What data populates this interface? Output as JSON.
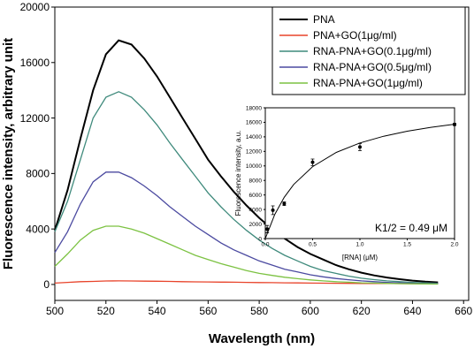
{
  "chart_data": [
    {
      "type": "line",
      "xlabel": "Wavelength (nm)",
      "ylabel": "Fluorescence intensity, arbitrary unit",
      "xlim": [
        500,
        662
      ],
      "ylim": [
        -1150,
        20000
      ],
      "xticks": [
        500,
        520,
        540,
        560,
        580,
        600,
        620,
        640,
        660
      ],
      "yticks": [
        0,
        4000,
        8000,
        12000,
        16000,
        20000
      ],
      "legend": "upper right",
      "x": [
        500,
        505,
        510,
        515,
        520,
        525,
        530,
        535,
        540,
        545,
        550,
        555,
        560,
        565,
        570,
        575,
        580,
        585,
        590,
        595,
        600,
        605,
        610,
        615,
        620,
        625,
        630,
        635,
        640,
        645,
        650
      ],
      "series": [
        {
          "name": "PNA",
          "color": "#000000",
          "values": [
            3900,
            6800,
            10500,
            14000,
            16600,
            17600,
            17300,
            16300,
            15000,
            13500,
            12000,
            10500,
            9000,
            7800,
            6700,
            5700,
            4800,
            4000,
            3300,
            2700,
            2200,
            1800,
            1400,
            1100,
            850,
            650,
            500,
            380,
            280,
            200,
            150
          ]
        },
        {
          "name": "PNA+GO(1μg/ml)",
          "color": "#e8432a",
          "values": [
            100,
            150,
            200,
            220,
            250,
            260,
            250,
            240,
            230,
            220,
            200,
            190,
            180,
            170,
            160,
            150,
            140,
            130,
            120,
            110,
            100,
            90,
            85,
            80,
            75,
            70,
            65,
            60,
            55,
            50,
            50
          ]
        },
        {
          "name": "RNA-PNA+GO(0.1μg/ml)",
          "color": "#3f8a7c",
          "values": [
            3800,
            6000,
            9000,
            12000,
            13500,
            13900,
            13500,
            12600,
            11500,
            10200,
            9000,
            7800,
            6600,
            5600,
            4700,
            3900,
            3200,
            2600,
            2100,
            1700,
            1300,
            1000,
            800,
            600,
            450,
            350,
            260,
            200,
            150,
            110,
            80
          ]
        },
        {
          "name": "RNA-PNA+GO(0.5μg/ml)",
          "color": "#4b4aa0",
          "values": [
            2300,
            3800,
            5800,
            7400,
            8100,
            8100,
            7700,
            7100,
            6400,
            5600,
            4900,
            4200,
            3600,
            3000,
            2500,
            2100,
            1700,
            1400,
            1100,
            900,
            700,
            550,
            430,
            340,
            260,
            200,
            150,
            110,
            80,
            60,
            50
          ]
        },
        {
          "name": "RNA-PNA+GO(1μg/ml)",
          "color": "#7cc242",
          "values": [
            1300,
            2200,
            3200,
            3900,
            4200,
            4200,
            4000,
            3700,
            3300,
            2900,
            2500,
            2100,
            1800,
            1500,
            1250,
            1000,
            800,
            650,
            520,
            420,
            330,
            260,
            200,
            160,
            120,
            100,
            80,
            60,
            50,
            40,
            30
          ]
        }
      ]
    },
    {
      "type": "scatter",
      "xlabel": "[RNA] (μM)",
      "ylabel": "Fluorescence intensity, a.u.",
      "annotation": "K1/2 = 0.49 μM",
      "xlim": [
        0,
        2.0
      ],
      "ylim": [
        0,
        18000
      ],
      "xticks": [
        {
          "value": 0,
          "label": "0.0"
        },
        0.5,
        {
          "value": 1,
          "label": "1.0"
        },
        1.5,
        {
          "value": 2,
          "label": "2.0"
        }
      ],
      "yticks": [
        0,
        2000,
        4000,
        6000,
        8000,
        10000,
        12000,
        14000,
        16000,
        18000
      ],
      "series": [
        {
          "color": "#000000",
          "x": [
            0.02,
            0.08,
            0.2,
            0.5,
            1.0,
            2.0
          ],
          "values": [
            1300,
            3900,
            4800,
            10500,
            12600,
            15700
          ],
          "errors": [
            500,
            600,
            250,
            450,
            500,
            150
          ]
        },
        {
          "color": "#000000",
          "style": "line",
          "x": [
            0,
            0.1,
            0.2,
            0.3,
            0.5,
            0.75,
            1.0,
            1.25,
            1.5,
            1.75,
            2.0
          ],
          "values": [
            0,
            3322,
            5681,
            7443,
            9899,
            11855,
            13154,
            14080,
            14774,
            15313,
            15743
          ]
        }
      ]
    }
  ]
}
